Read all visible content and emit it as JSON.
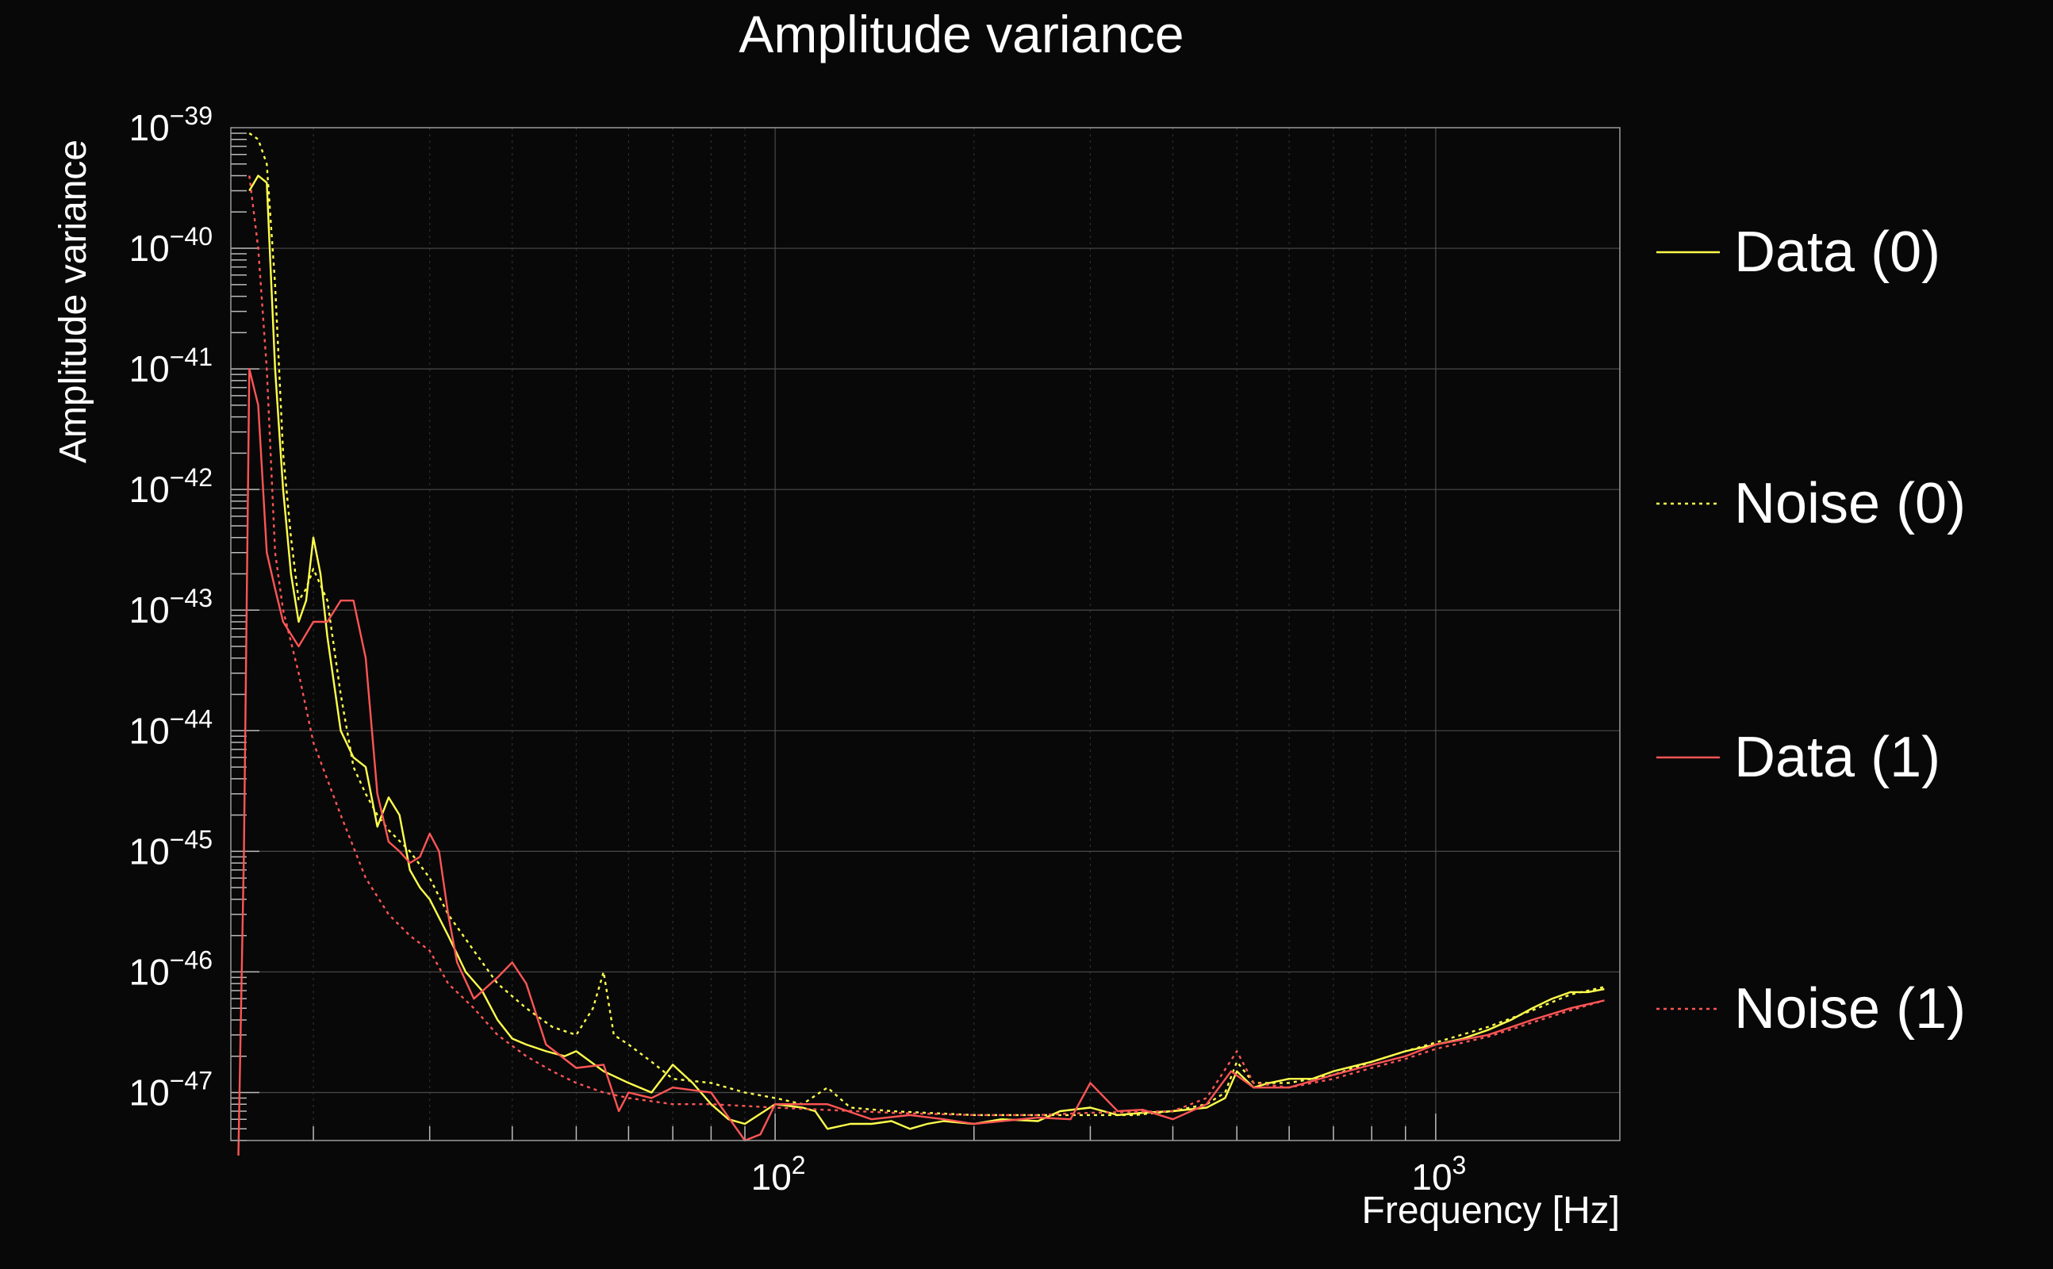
{
  "chart_data": {
    "type": "line",
    "title": "Amplitude variance",
    "xlabel": "Frequency [Hz]",
    "ylabel": "Amplitude variance",
    "xscale": "log",
    "yscale": "log",
    "xlim": [
      15,
      1900
    ],
    "ylim": [
      4e-48,
      1e-39
    ],
    "grid": true,
    "legend_position": "right",
    "x_ticks": [
      {
        "value": 100,
        "label": "10",
        "exp": "2"
      },
      {
        "value": 1000,
        "label": "10",
        "exp": "3"
      }
    ],
    "y_ticks": [
      {
        "value": 1e-39,
        "label": "10",
        "exp": "−39"
      },
      {
        "value": 1e-40,
        "label": "10",
        "exp": "−40"
      },
      {
        "value": 1e-41,
        "label": "10",
        "exp": "−41"
      },
      {
        "value": 1e-42,
        "label": "10",
        "exp": "−42"
      },
      {
        "value": 1e-43,
        "label": "10",
        "exp": "−43"
      },
      {
        "value": 1e-44,
        "label": "10",
        "exp": "−44"
      },
      {
        "value": 1e-45,
        "label": "10",
        "exp": "−45"
      },
      {
        "value": 1e-46,
        "label": "10",
        "exp": "−46"
      },
      {
        "value": 1e-47,
        "label": "10",
        "exp": "−47"
      }
    ],
    "series": [
      {
        "name": "Data (0)",
        "color": "#ffff4d",
        "style": "solid",
        "points": [
          [
            16,
            3e-40
          ],
          [
            16.5,
            4e-40
          ],
          [
            17,
            3.5e-40
          ],
          [
            17.5,
            1e-41
          ],
          [
            18,
            1e-42
          ],
          [
            18.5,
            2e-43
          ],
          [
            19,
            8e-44
          ],
          [
            19.5,
            1.2e-43
          ],
          [
            20,
            4e-43
          ],
          [
            20.5,
            2e-43
          ],
          [
            21,
            6e-44
          ],
          [
            22,
            1e-44
          ],
          [
            23,
            6e-45
          ],
          [
            24,
            5e-45
          ],
          [
            25,
            1.6e-45
          ],
          [
            26,
            2.8e-45
          ],
          [
            27,
            2e-45
          ],
          [
            28,
            7e-46
          ],
          [
            29,
            5e-46
          ],
          [
            30,
            4e-46
          ],
          [
            32,
            2e-46
          ],
          [
            34,
            1e-46
          ],
          [
            36,
            7e-47
          ],
          [
            38,
            4e-47
          ],
          [
            40,
            2.8e-47
          ],
          [
            42,
            2.5e-47
          ],
          [
            45,
            2.2e-47
          ],
          [
            48,
            2e-47
          ],
          [
            50,
            2.2e-47
          ],
          [
            55,
            1.5e-47
          ],
          [
            60,
            1.2e-47
          ],
          [
            65,
            1e-47
          ],
          [
            70,
            1.7e-47
          ],
          [
            75,
            1.2e-47
          ],
          [
            80,
            8e-48
          ],
          [
            85,
            6e-48
          ],
          [
            90,
            5.5e-48
          ],
          [
            100,
            8e-48
          ],
          [
            110,
            7.5e-48
          ],
          [
            115,
            7e-48
          ],
          [
            120,
            5e-48
          ],
          [
            130,
            5.5e-48
          ],
          [
            140,
            5.5e-48
          ],
          [
            150,
            5.8e-48
          ],
          [
            160,
            5e-48
          ],
          [
            170,
            5.5e-48
          ],
          [
            180,
            5.8e-48
          ],
          [
            200,
            5.5e-48
          ],
          [
            220,
            6e-48
          ],
          [
            250,
            5.8e-48
          ],
          [
            270,
            7e-48
          ],
          [
            300,
            7.5e-48
          ],
          [
            330,
            6.5e-48
          ],
          [
            360,
            6.8e-48
          ],
          [
            400,
            7e-48
          ],
          [
            450,
            7.5e-48
          ],
          [
            480,
            9e-48
          ],
          [
            500,
            1.5e-47
          ],
          [
            530,
            1.1e-47
          ],
          [
            560,
            1.2e-47
          ],
          [
            600,
            1.3e-47
          ],
          [
            650,
            1.3e-47
          ],
          [
            700,
            1.5e-47
          ],
          [
            800,
            1.8e-47
          ],
          [
            900,
            2.2e-47
          ],
          [
            1000,
            2.5e-47
          ],
          [
            1100,
            2.8e-47
          ],
          [
            1200,
            3.3e-47
          ],
          [
            1300,
            4e-47
          ],
          [
            1400,
            5e-47
          ],
          [
            1500,
            6e-47
          ],
          [
            1600,
            6.8e-47
          ],
          [
            1700,
            6.8e-47
          ],
          [
            1800,
            7.2e-47
          ]
        ]
      },
      {
        "name": "Noise (0)",
        "color": "#ffff4d",
        "style": "dotted",
        "points": [
          [
            16,
            9e-40
          ],
          [
            16.5,
            8e-40
          ],
          [
            17,
            5e-40
          ],
          [
            17.5,
            5e-41
          ],
          [
            18,
            2e-42
          ],
          [
            18.5,
            4e-43
          ],
          [
            19,
            1.2e-43
          ],
          [
            19.5,
            1.5e-43
          ],
          [
            20,
            2.2e-43
          ],
          [
            21,
            1.2e-43
          ],
          [
            22,
            2e-44
          ],
          [
            23,
            5e-45
          ],
          [
            24,
            3e-45
          ],
          [
            25,
            2e-45
          ],
          [
            26,
            1.5e-45
          ],
          [
            28,
            1e-45
          ],
          [
            30,
            6e-46
          ],
          [
            32,
            3e-46
          ],
          [
            35,
            1.5e-46
          ],
          [
            38,
            8e-47
          ],
          [
            42,
            5e-47
          ],
          [
            46,
            3.5e-47
          ],
          [
            50,
            3e-47
          ],
          [
            53,
            5e-47
          ],
          [
            55,
            1e-46
          ],
          [
            57,
            3e-47
          ],
          [
            60,
            2.5e-47
          ],
          [
            65,
            1.8e-47
          ],
          [
            70,
            1.3e-47
          ],
          [
            80,
            1.2e-47
          ],
          [
            90,
            1e-47
          ],
          [
            100,
            9e-48
          ],
          [
            110,
            8e-48
          ],
          [
            120,
            1.1e-47
          ],
          [
            130,
            7.5e-48
          ],
          [
            150,
            7e-48
          ],
          [
            200,
            6.5e-48
          ],
          [
            250,
            6.5e-48
          ],
          [
            300,
            6.5e-48
          ],
          [
            350,
            6.5e-48
          ],
          [
            400,
            7e-48
          ],
          [
            450,
            8e-48
          ],
          [
            480,
            1e-47
          ],
          [
            500,
            1.8e-47
          ],
          [
            530,
            1.2e-47
          ],
          [
            600,
            1.2e-47
          ],
          [
            700,
            1.4e-47
          ],
          [
            800,
            1.8e-47
          ],
          [
            900,
            2.2e-47
          ],
          [
            1000,
            2.6e-47
          ],
          [
            1200,
            3.5e-47
          ],
          [
            1400,
            4.8e-47
          ],
          [
            1600,
            6.5e-47
          ],
          [
            1800,
            7.5e-47
          ]
        ]
      },
      {
        "name": "Data (1)",
        "color": "#ff5555",
        "style": "solid",
        "points": [
          [
            15.4,
            3e-48
          ],
          [
            15.7,
            1e-45
          ],
          [
            16,
            1e-41
          ],
          [
            16.5,
            5e-42
          ],
          [
            17,
            3e-43
          ],
          [
            17.5,
            1.5e-43
          ],
          [
            18,
            8e-44
          ],
          [
            19,
            5e-44
          ],
          [
            20,
            8e-44
          ],
          [
            21,
            8e-44
          ],
          [
            22,
            1.2e-43
          ],
          [
            23,
            1.2e-43
          ],
          [
            24,
            4e-44
          ],
          [
            25,
            3e-45
          ],
          [
            26,
            1.2e-45
          ],
          [
            27,
            1e-45
          ],
          [
            28,
            8e-46
          ],
          [
            29,
            9e-46
          ],
          [
            30,
            1.4e-45
          ],
          [
            31,
            1e-45
          ],
          [
            32,
            3e-46
          ],
          [
            33,
            1.2e-46
          ],
          [
            35,
            6e-47
          ],
          [
            38,
            9e-47
          ],
          [
            40,
            1.2e-46
          ],
          [
            42,
            8e-47
          ],
          [
            45,
            2.5e-47
          ],
          [
            50,
            1.6e-47
          ],
          [
            55,
            1.7e-47
          ],
          [
            58,
            7e-48
          ],
          [
            60,
            1e-47
          ],
          [
            65,
            9e-48
          ],
          [
            70,
            1.1e-47
          ],
          [
            80,
            1e-47
          ],
          [
            90,
            4e-48
          ],
          [
            95,
            4.5e-48
          ],
          [
            100,
            8e-48
          ],
          [
            120,
            8e-48
          ],
          [
            140,
            6e-48
          ],
          [
            160,
            6.5e-48
          ],
          [
            180,
            6e-48
          ],
          [
            200,
            5.5e-48
          ],
          [
            250,
            6.2e-48
          ],
          [
            280,
            6e-48
          ],
          [
            300,
            1.2e-47
          ],
          [
            330,
            7e-48
          ],
          [
            360,
            7.2e-48
          ],
          [
            400,
            6e-48
          ],
          [
            450,
            8e-48
          ],
          [
            490,
            1.5e-47
          ],
          [
            530,
            1.1e-47
          ],
          [
            600,
            1.1e-47
          ],
          [
            700,
            1.4e-47
          ],
          [
            800,
            1.7e-47
          ],
          [
            900,
            2e-47
          ],
          [
            1000,
            2.5e-47
          ],
          [
            1200,
            3e-47
          ],
          [
            1400,
            4e-47
          ],
          [
            1600,
            5e-47
          ],
          [
            1800,
            5.8e-47
          ]
        ]
      },
      {
        "name": "Noise (1)",
        "color": "#ff5555",
        "style": "dotted",
        "points": [
          [
            16,
            4e-40
          ],
          [
            16.5,
            1e-40
          ],
          [
            17,
            1e-41
          ],
          [
            17.5,
            3e-43
          ],
          [
            18,
            1e-43
          ],
          [
            19,
            3e-44
          ],
          [
            20,
            8e-45
          ],
          [
            22,
            2e-45
          ],
          [
            24,
            6e-46
          ],
          [
            26,
            3e-46
          ],
          [
            28,
            2e-46
          ],
          [
            30,
            1.5e-46
          ],
          [
            32,
            8e-47
          ],
          [
            35,
            5e-47
          ],
          [
            38,
            3e-47
          ],
          [
            42,
            2e-47
          ],
          [
            46,
            1.5e-47
          ],
          [
            50,
            1.2e-47
          ],
          [
            55,
            1e-47
          ],
          [
            60,
            9e-48
          ],
          [
            70,
            8e-48
          ],
          [
            80,
            8e-48
          ],
          [
            100,
            7.5e-48
          ],
          [
            150,
            6.8e-48
          ],
          [
            200,
            6.5e-48
          ],
          [
            250,
            6.5e-48
          ],
          [
            300,
            6.8e-48
          ],
          [
            400,
            7e-48
          ],
          [
            450,
            9e-48
          ],
          [
            500,
            2.2e-47
          ],
          [
            530,
            1.2e-47
          ],
          [
            600,
            1.1e-47
          ],
          [
            700,
            1.3e-47
          ],
          [
            800,
            1.6e-47
          ],
          [
            900,
            1.9e-47
          ],
          [
            1000,
            2.3e-47
          ],
          [
            1200,
            2.9e-47
          ],
          [
            1400,
            3.8e-47
          ],
          [
            1600,
            4.8e-47
          ],
          [
            1800,
            5.8e-47
          ]
        ]
      }
    ]
  }
}
